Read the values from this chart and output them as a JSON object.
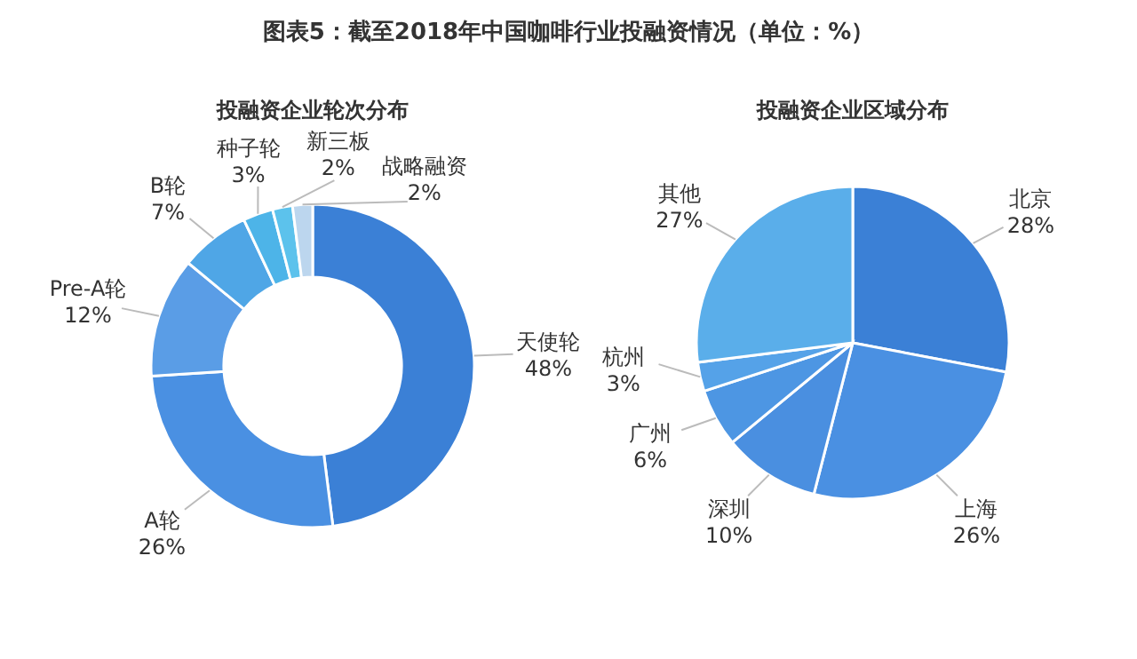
{
  "chart_data": [
    {
      "type": "donut",
      "title": "图表5：截至2018年中国咖啡行业投融资情况（单位：%）",
      "subtitle": "投融资企业轮次分布",
      "categories": [
        "天使轮",
        "A轮",
        "Pre-A轮",
        "B轮",
        "种子轮",
        "新三板",
        "战略融资"
      ],
      "values": [
        48,
        26,
        12,
        7,
        3,
        2,
        2
      ],
      "value_labels": [
        "48%",
        "26%",
        "12%",
        "7%",
        "3%",
        "2%",
        "2%"
      ],
      "colors": [
        "#3b80d6",
        "#4a90e2",
        "#5a9de6",
        "#4fa6e6",
        "#4db4e8",
        "#5cc2ec",
        "#bcd6ee"
      ]
    },
    {
      "type": "pie",
      "title": "投融资企业区域分布",
      "categories": [
        "北京",
        "上海",
        "深圳",
        "广州",
        "杭州",
        "其他"
      ],
      "values": [
        28,
        26,
        10,
        6,
        3,
        27
      ],
      "value_labels": [
        "28%",
        "26%",
        "10%",
        "6%",
        "3%",
        "27%"
      ],
      "colors": [
        "#3b80d6",
        "#4a90e2",
        "#4a8fe0",
        "#4d96e3",
        "#55a2e8",
        "#5aaeea"
      ]
    }
  ]
}
